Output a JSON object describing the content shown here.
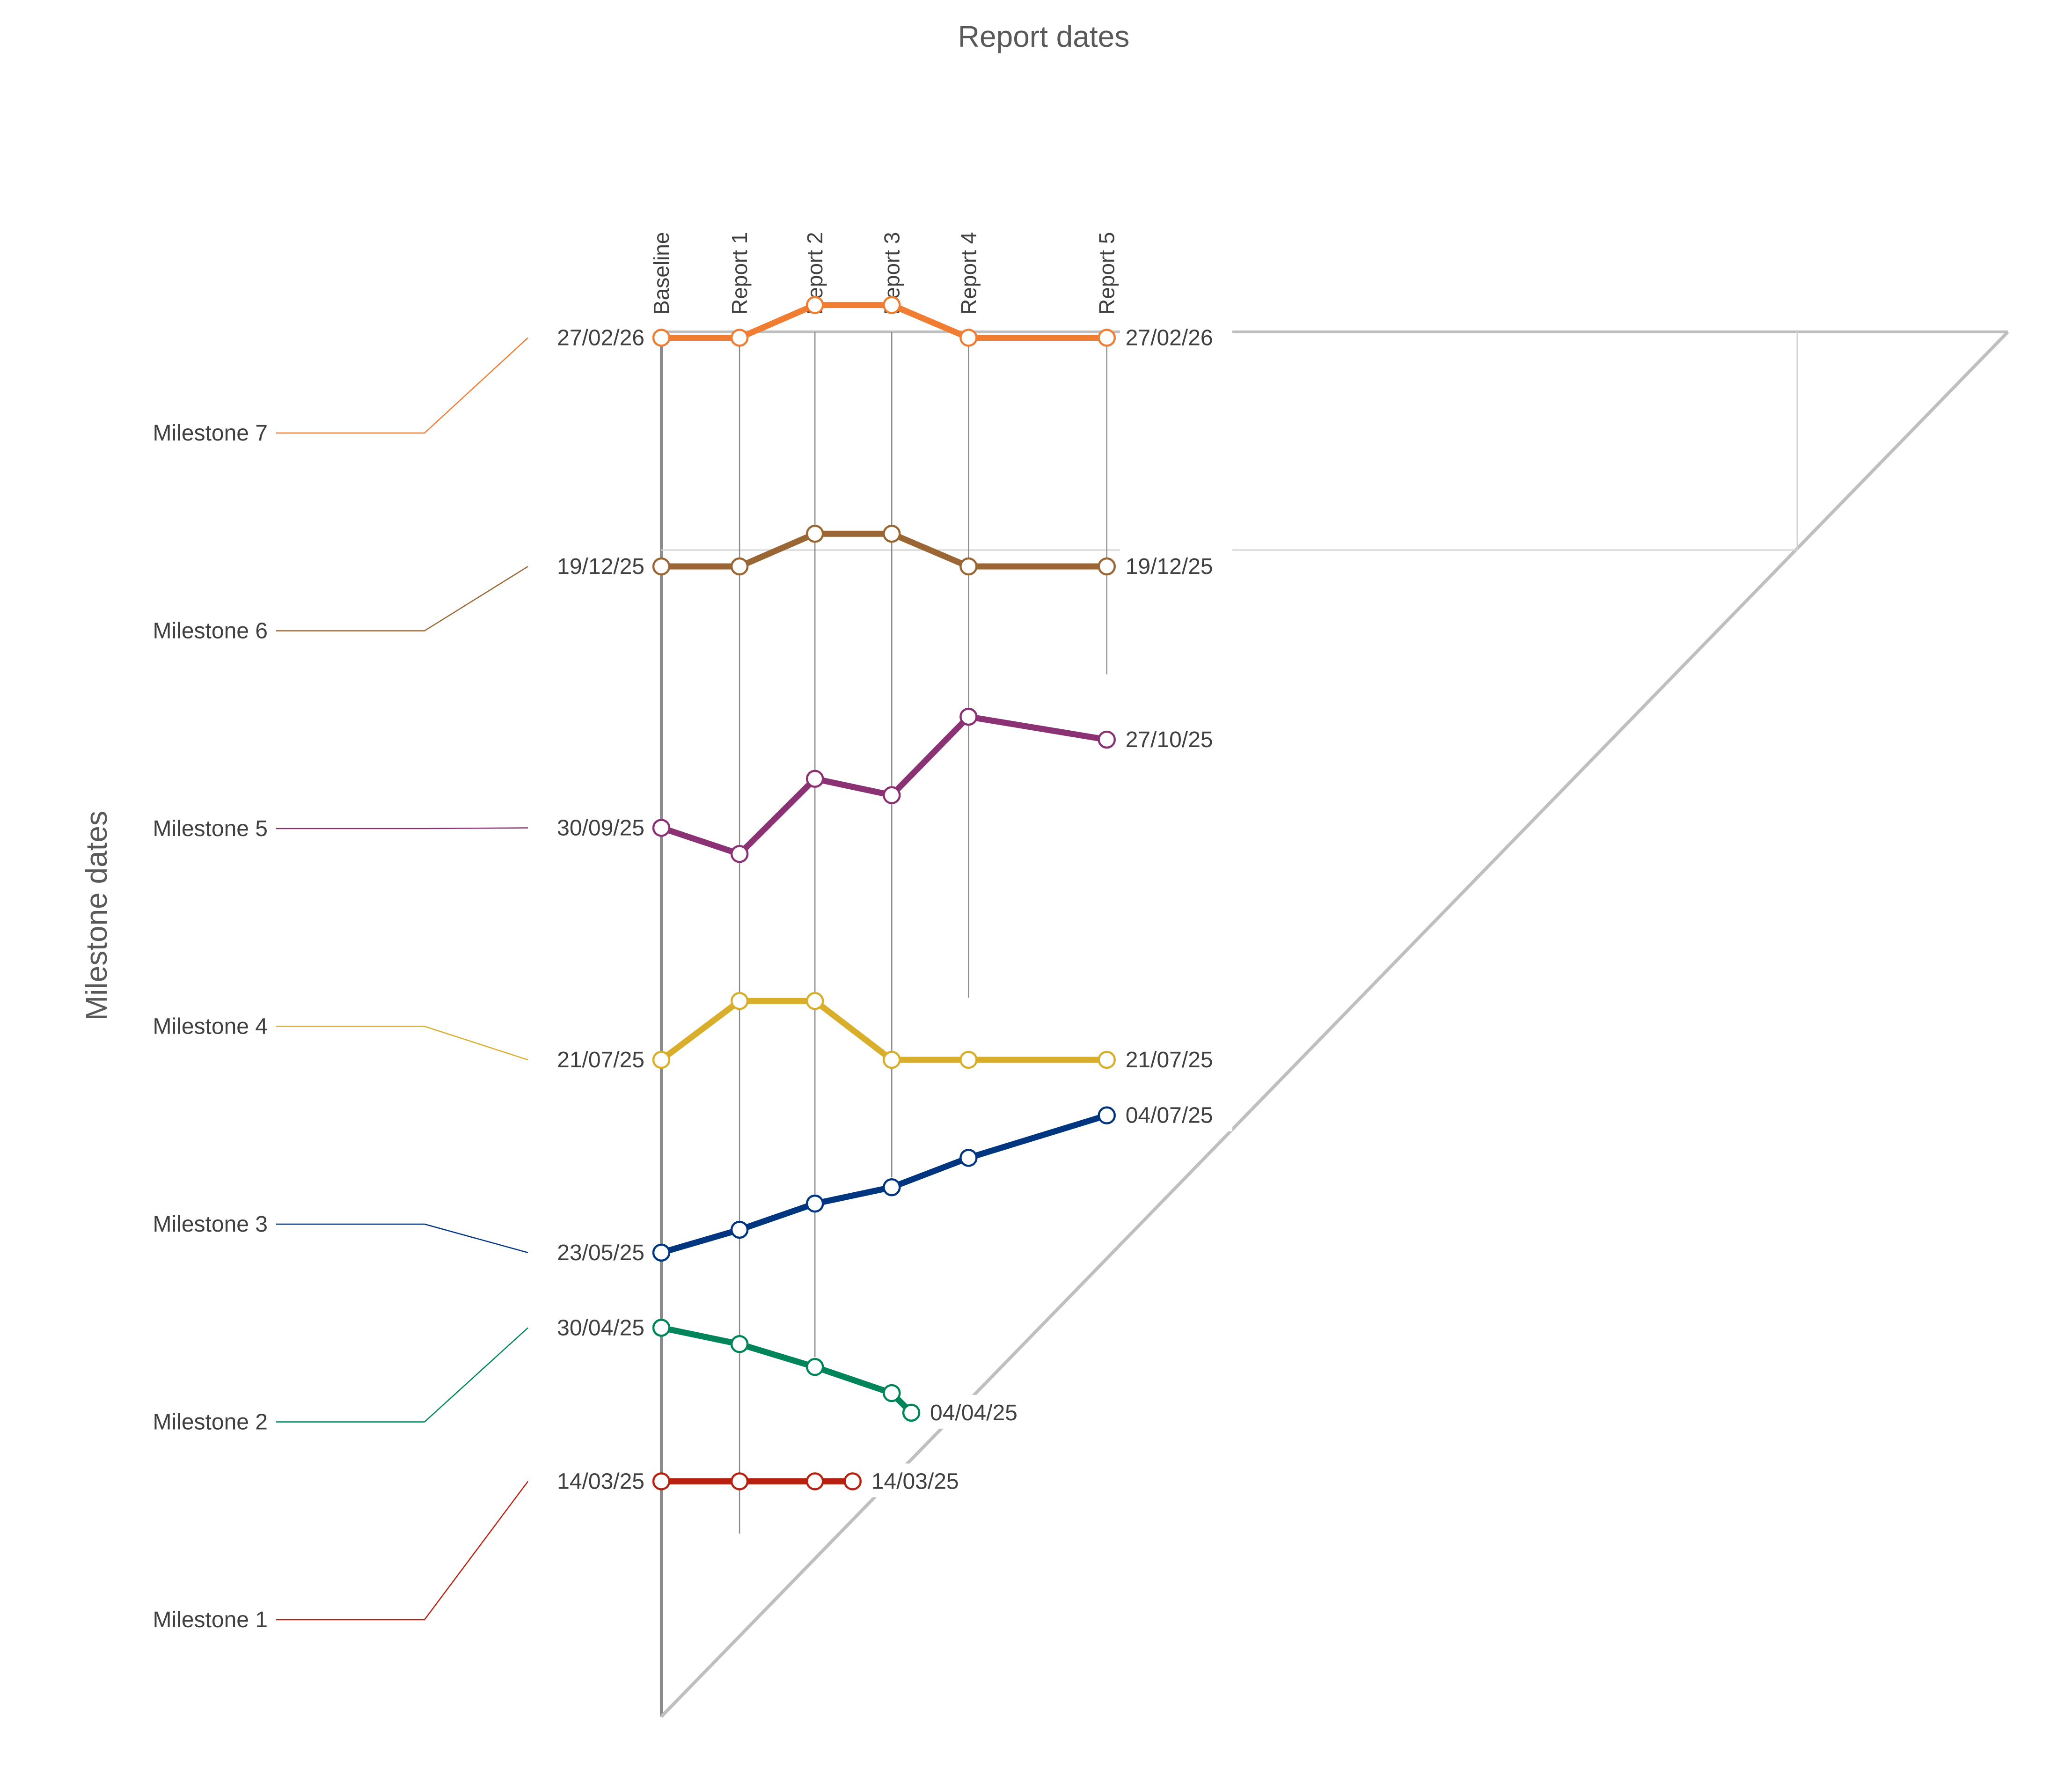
{
  "chart_data": {
    "type": "line",
    "title": "",
    "xlabel": "Report dates",
    "ylabel": "Milestone dates",
    "x_categories": [
      "Baseline",
      "Report 1",
      "Report 2",
      "Report 3",
      "Report 4",
      "Report 5"
    ],
    "x_report_dates": [
      "2025-01-01",
      "2025-02-26",
      "2025-04-21",
      "2025-06-15",
      "2025-08-09",
      "2025-11-16"
    ],
    "ylim": [
      "2025-01-01",
      "2026-04-01"
    ],
    "legend_position": "left",
    "series": [
      {
        "name": "Milestone 1",
        "color": "#B82010",
        "points": [
          {
            "x": "2025-01-01",
            "y": "2025-03-14"
          },
          {
            "x": "2025-02-26",
            "y": "2025-03-14"
          },
          {
            "x": "2025-04-21",
            "y": "2025-03-14"
          },
          {
            "x": "2025-05-18",
            "y": "2025-03-14"
          }
        ],
        "start_label": "14/03/25",
        "end_label": "14/03/25"
      },
      {
        "name": "Milestone 2",
        "color": "#00845A",
        "points": [
          {
            "x": "2025-01-01",
            "y": "2025-04-30"
          },
          {
            "x": "2025-02-26",
            "y": "2025-04-25"
          },
          {
            "x": "2025-04-21",
            "y": "2025-04-18"
          },
          {
            "x": "2025-06-15",
            "y": "2025-04-10"
          },
          {
            "x": "2025-06-29",
            "y": "2025-04-04"
          }
        ],
        "start_label": "30/04/25",
        "end_label": "04/04/25"
      },
      {
        "name": "Milestone 3",
        "color": "#003580",
        "points": [
          {
            "x": "2025-01-01",
            "y": "2025-05-23"
          },
          {
            "x": "2025-02-26",
            "y": "2025-05-30"
          },
          {
            "x": "2025-04-21",
            "y": "2025-06-07"
          },
          {
            "x": "2025-06-15",
            "y": "2025-06-12"
          },
          {
            "x": "2025-08-09",
            "y": "2025-06-21"
          },
          {
            "x": "2025-11-16",
            "y": "2025-07-04"
          }
        ],
        "start_label": "23/05/25",
        "end_label": "04/07/25"
      },
      {
        "name": "Milestone 4",
        "color": "#D9AE2B",
        "points": [
          {
            "x": "2025-01-01",
            "y": "2025-07-21"
          },
          {
            "x": "2025-02-26",
            "y": "2025-08-08"
          },
          {
            "x": "2025-04-21",
            "y": "2025-08-08"
          },
          {
            "x": "2025-06-15",
            "y": "2025-07-21"
          },
          {
            "x": "2025-08-09",
            "y": "2025-07-21"
          },
          {
            "x": "2025-11-16",
            "y": "2025-07-21"
          }
        ],
        "start_label": "21/07/25",
        "end_label": "21/07/25"
      },
      {
        "name": "Milestone 5",
        "color": "#8B3274",
        "points": [
          {
            "x": "2025-01-01",
            "y": "2025-09-30"
          },
          {
            "x": "2025-02-26",
            "y": "2025-09-22"
          },
          {
            "x": "2025-04-21",
            "y": "2025-10-15"
          },
          {
            "x": "2025-06-15",
            "y": "2025-10-10"
          },
          {
            "x": "2025-08-09",
            "y": "2025-11-03"
          },
          {
            "x": "2025-11-16",
            "y": "2025-10-27"
          }
        ],
        "start_label": "30/09/25",
        "end_label": "27/10/25"
      },
      {
        "name": "Milestone 6",
        "color": "#9A6634",
        "points": [
          {
            "x": "2025-01-01",
            "y": "2025-12-19"
          },
          {
            "x": "2025-02-26",
            "y": "2025-12-19"
          },
          {
            "x": "2025-04-21",
            "y": "2025-12-29"
          },
          {
            "x": "2025-06-15",
            "y": "2025-12-29"
          },
          {
            "x": "2025-08-09",
            "y": "2025-12-19"
          },
          {
            "x": "2025-11-16",
            "y": "2025-12-19"
          }
        ],
        "start_label": "19/12/25",
        "end_label": "19/12/25"
      },
      {
        "name": "Milestone 7",
        "color": "#F07D32",
        "points": [
          {
            "x": "2025-01-01",
            "y": "2026-02-27"
          },
          {
            "x": "2025-02-26",
            "y": "2026-02-27"
          },
          {
            "x": "2025-04-21",
            "y": "2026-03-09"
          },
          {
            "x": "2025-06-15",
            "y": "2026-03-09"
          },
          {
            "x": "2025-08-09",
            "y": "2026-02-27"
          },
          {
            "x": "2025-11-16",
            "y": "2026-02-27"
          }
        ],
        "start_label": "27/02/26",
        "end_label": "27/02/26"
      }
    ]
  }
}
